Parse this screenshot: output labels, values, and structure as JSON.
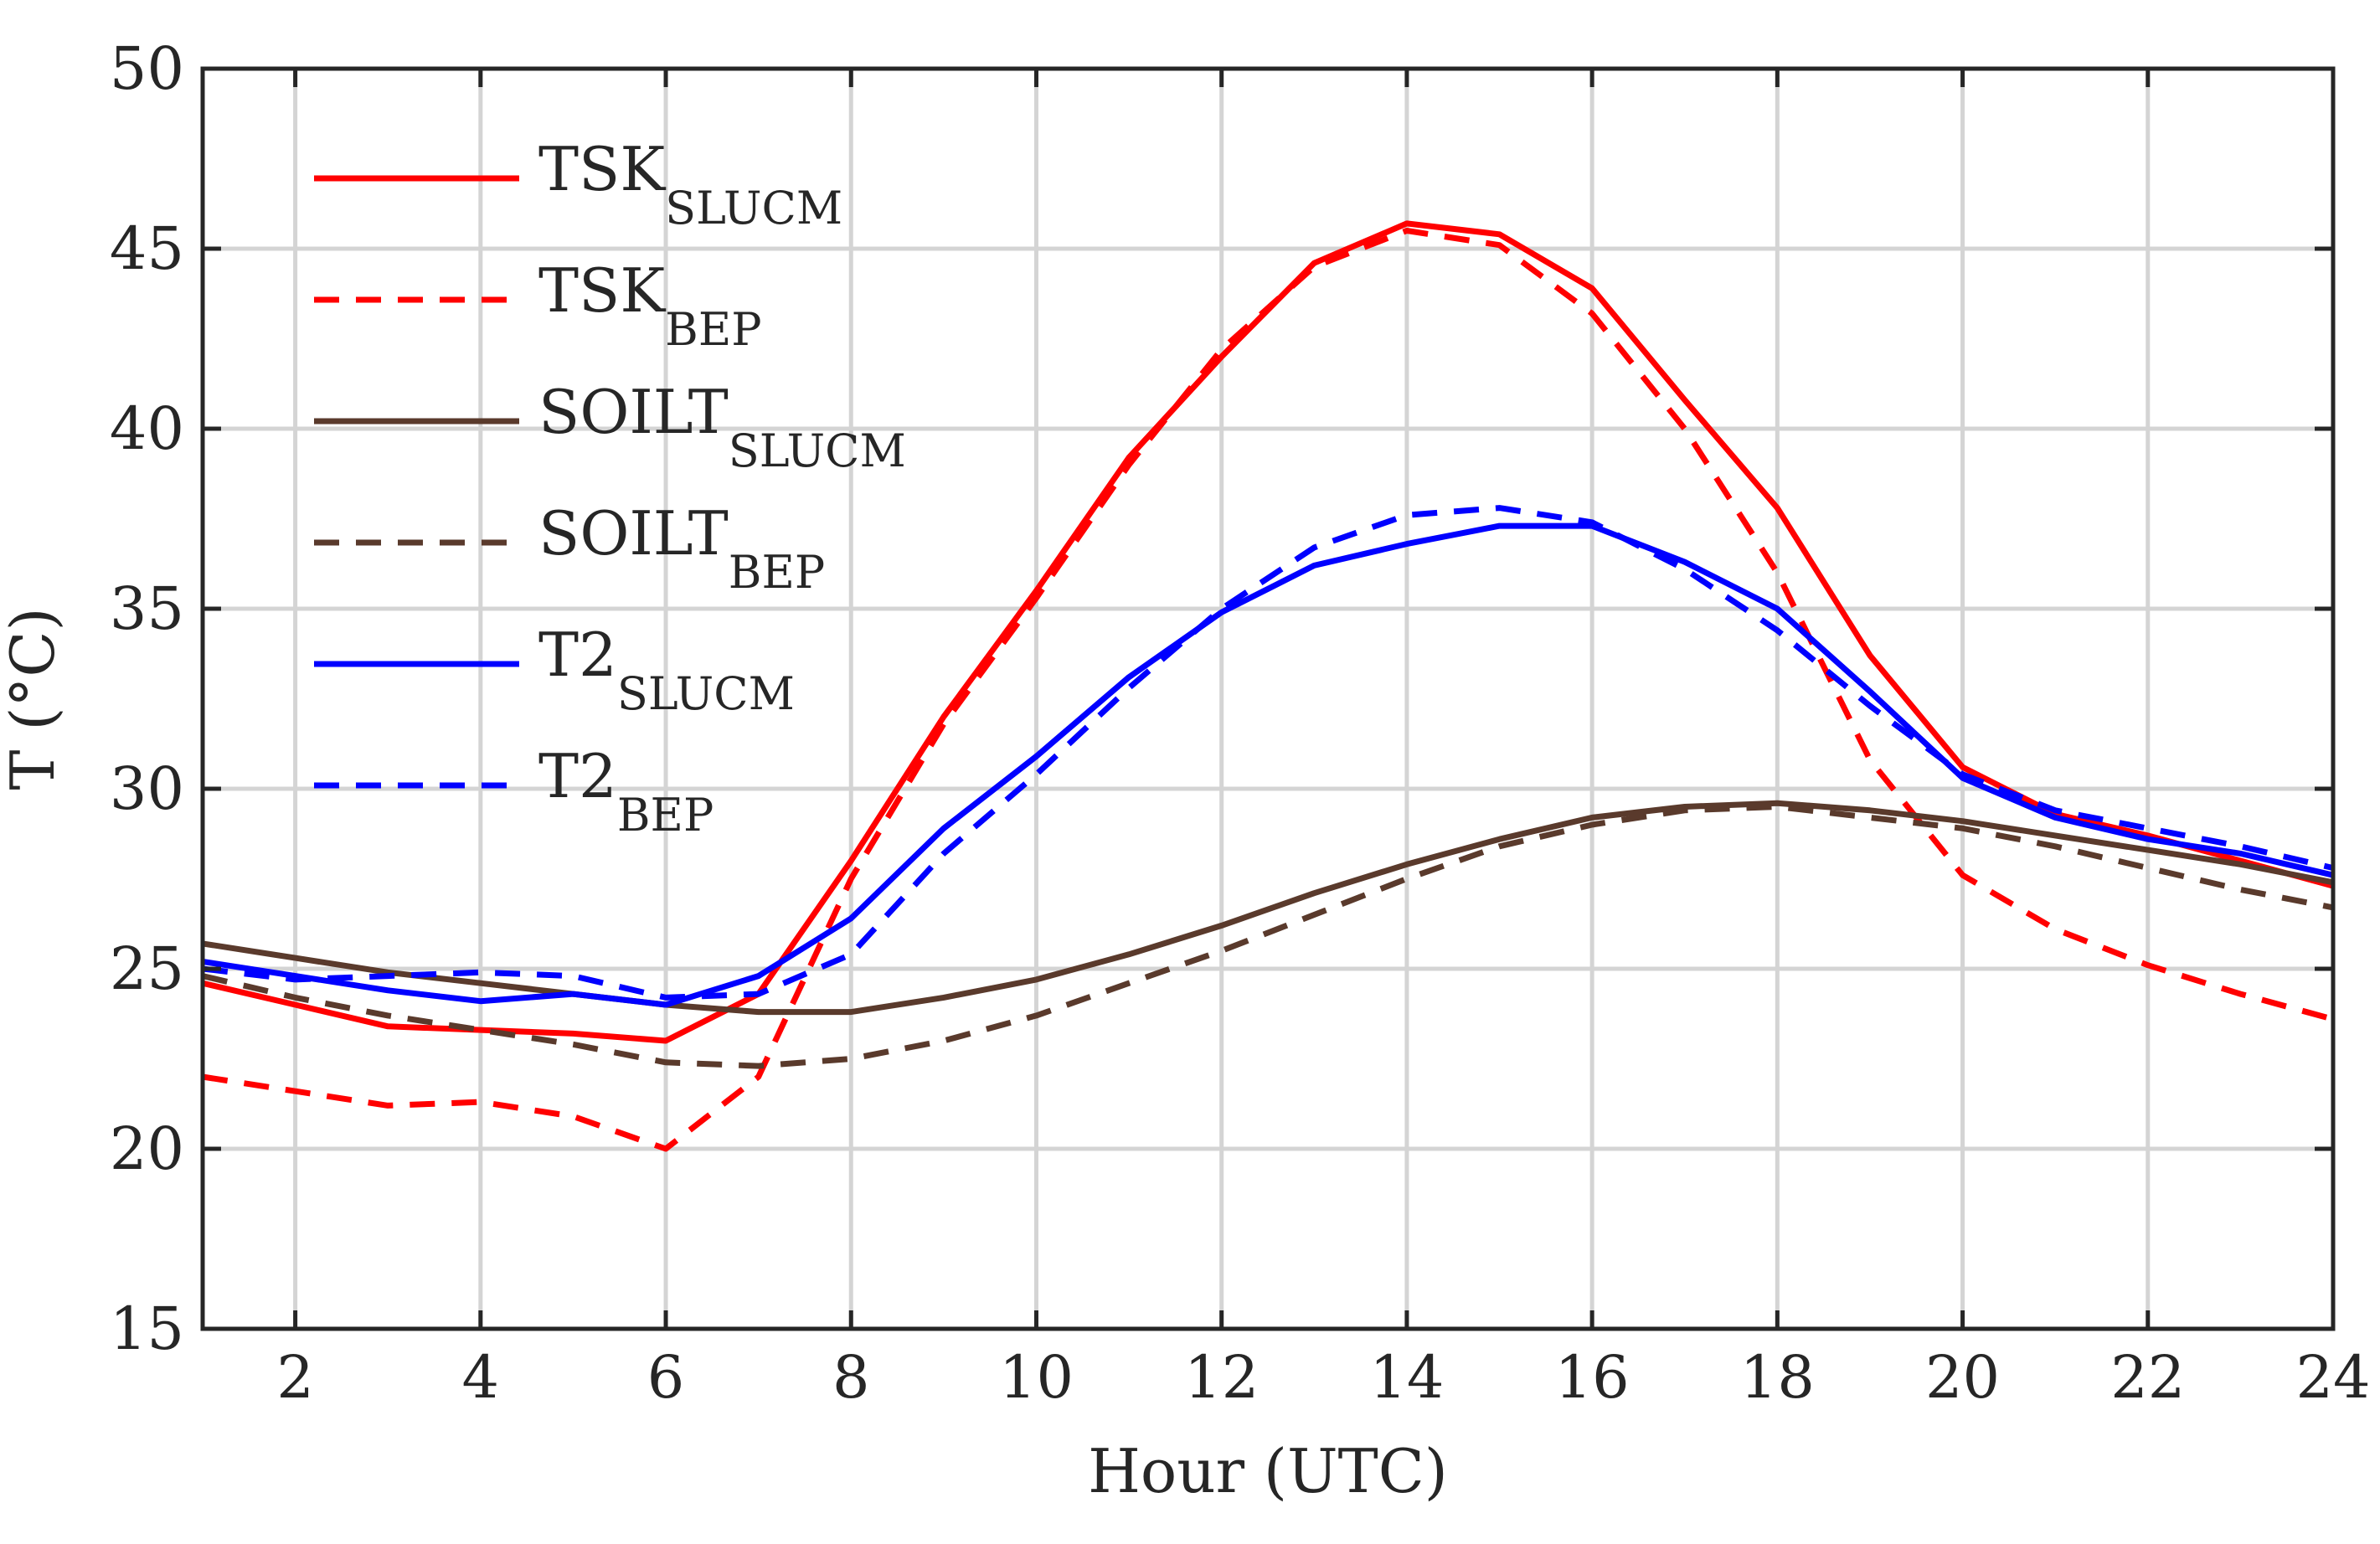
{
  "chart_data": {
    "type": "line",
    "title": "",
    "xlabel": "Hour (UTC)",
    "ylabel": "T (°C)",
    "xlim": [
      1,
      24
    ],
    "ylim": [
      15,
      50
    ],
    "xticks": [
      2,
      4,
      6,
      8,
      10,
      12,
      14,
      16,
      18,
      20,
      22,
      24
    ],
    "yticks": [
      15,
      20,
      25,
      30,
      35,
      40,
      45,
      50
    ],
    "grid": true,
    "legend_position": "top-left",
    "x": [
      1,
      2,
      3,
      4,
      5,
      6,
      7,
      8,
      9,
      10,
      11,
      12,
      13,
      14,
      15,
      16,
      17,
      18,
      19,
      20,
      21,
      22,
      23,
      24
    ],
    "series": [
      {
        "name": "TSK",
        "subscript": "SLUCM",
        "color": "#ff0000",
        "dash": "solid",
        "values": [
          24.6,
          24.0,
          23.4,
          23.3,
          23.2,
          23.0,
          24.3,
          28.0,
          32.0,
          35.5,
          39.2,
          42.0,
          44.6,
          45.7,
          45.4,
          43.9,
          40.8,
          37.8,
          33.7,
          30.6,
          29.3,
          28.7,
          28.0,
          27.3
        ]
      },
      {
        "name": "TSK",
        "subscript": "BEP",
        "color": "#ff0000",
        "dash": "dashed",
        "values": [
          22.0,
          21.6,
          21.2,
          21.3,
          20.9,
          20.0,
          22.0,
          27.5,
          31.8,
          35.3,
          39.0,
          42.2,
          44.5,
          45.5,
          45.1,
          43.2,
          40.0,
          36.0,
          30.8,
          27.6,
          26.1,
          25.1,
          24.3,
          23.6
        ]
      },
      {
        "name": "SOILT",
        "subscript": "SLUCM",
        "color": "#5a3a2c",
        "dash": "solid",
        "values": [
          25.7,
          25.3,
          24.9,
          24.6,
          24.3,
          24.0,
          23.8,
          23.8,
          24.2,
          24.7,
          25.4,
          26.2,
          27.1,
          27.9,
          28.6,
          29.2,
          29.5,
          29.6,
          29.4,
          29.1,
          28.7,
          28.3,
          27.9,
          27.4
        ]
      },
      {
        "name": "SOILT",
        "subscript": "BEP",
        "color": "#5a3a2c",
        "dash": "dashed",
        "values": [
          24.8,
          24.2,
          23.7,
          23.3,
          22.9,
          22.4,
          22.3,
          22.5,
          23.0,
          23.7,
          24.6,
          25.5,
          26.5,
          27.5,
          28.4,
          29.0,
          29.4,
          29.5,
          29.2,
          28.9,
          28.4,
          27.8,
          27.2,
          26.7
        ]
      },
      {
        "name": "T2",
        "subscript": "SLUCM",
        "color": "#0000ff",
        "dash": "solid",
        "values": [
          25.2,
          24.8,
          24.4,
          24.1,
          24.3,
          24.0,
          24.8,
          26.4,
          28.9,
          30.9,
          33.1,
          34.9,
          36.2,
          36.8,
          37.3,
          37.3,
          36.3,
          35.0,
          32.7,
          30.3,
          29.2,
          28.6,
          28.2,
          27.6
        ]
      },
      {
        "name": "T2",
        "subscript": "BEP",
        "color": "#0000ff",
        "dash": "dashed",
        "values": [
          25.0,
          24.7,
          24.8,
          24.9,
          24.8,
          24.2,
          24.3,
          25.4,
          28.2,
          30.4,
          32.8,
          35.0,
          36.7,
          37.6,
          37.8,
          37.4,
          36.1,
          34.4,
          32.3,
          30.4,
          29.4,
          28.9,
          28.4,
          27.8
        ]
      }
    ]
  }
}
